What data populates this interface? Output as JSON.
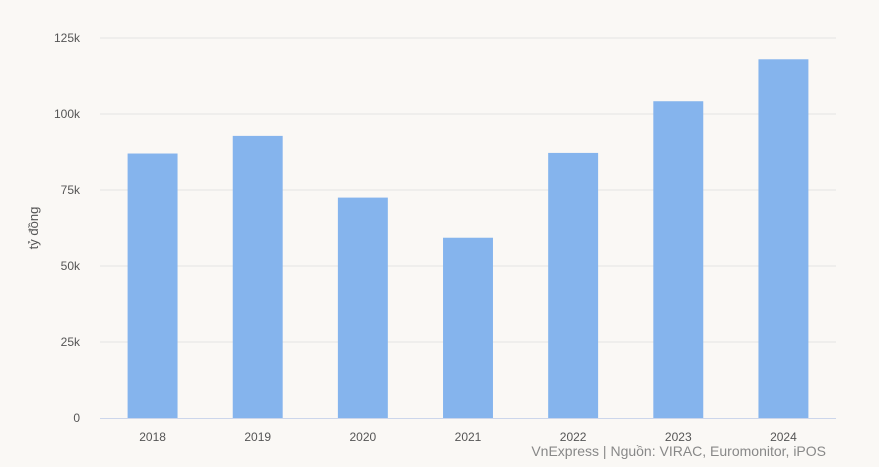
{
  "colors": {
    "background": "#faf8f5",
    "bar": "#85b4ed",
    "grid": "#e4e4e4",
    "axis": "#ccd6eb"
  },
  "chart_data": {
    "type": "bar",
    "categories": [
      "2018",
      "2019",
      "2020",
      "2021",
      "2022",
      "2023",
      "2024"
    ],
    "values": [
      87000,
      92800,
      72500,
      59300,
      87200,
      104200,
      118000
    ],
    "y_ticks": [
      0,
      25000,
      50000,
      75000,
      100000,
      125000
    ],
    "y_tick_labels": [
      "0",
      "25k",
      "50k",
      "75k",
      "100k",
      "125k"
    ],
    "ylim": [
      0,
      125000
    ],
    "ylabel": "tỷ đồng",
    "xlabel": "",
    "title": "",
    "grid": true,
    "legend": "none"
  },
  "source": "VnExpress | Nguồn: VIRAC, Euromonitor, iPOS"
}
